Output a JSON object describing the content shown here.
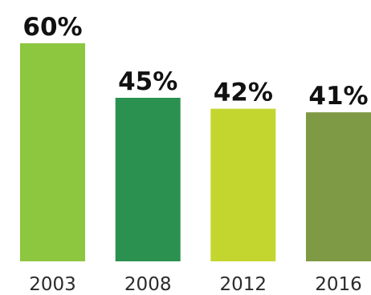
{
  "chart_data": {
    "type": "bar",
    "categories": [
      "2003",
      "2008",
      "2012",
      "2016"
    ],
    "values": [
      60,
      45,
      42,
      41
    ],
    "data_labels": [
      "60%",
      "45%",
      "42%",
      "41%"
    ],
    "colors": [
      "#8dc63f",
      "#2a9150",
      "#c3d62f",
      "#7f9a44"
    ],
    "title": "",
    "xlabel": "",
    "ylabel": "",
    "ylim": [
      0,
      60
    ],
    "grid": false,
    "legend": "none"
  }
}
